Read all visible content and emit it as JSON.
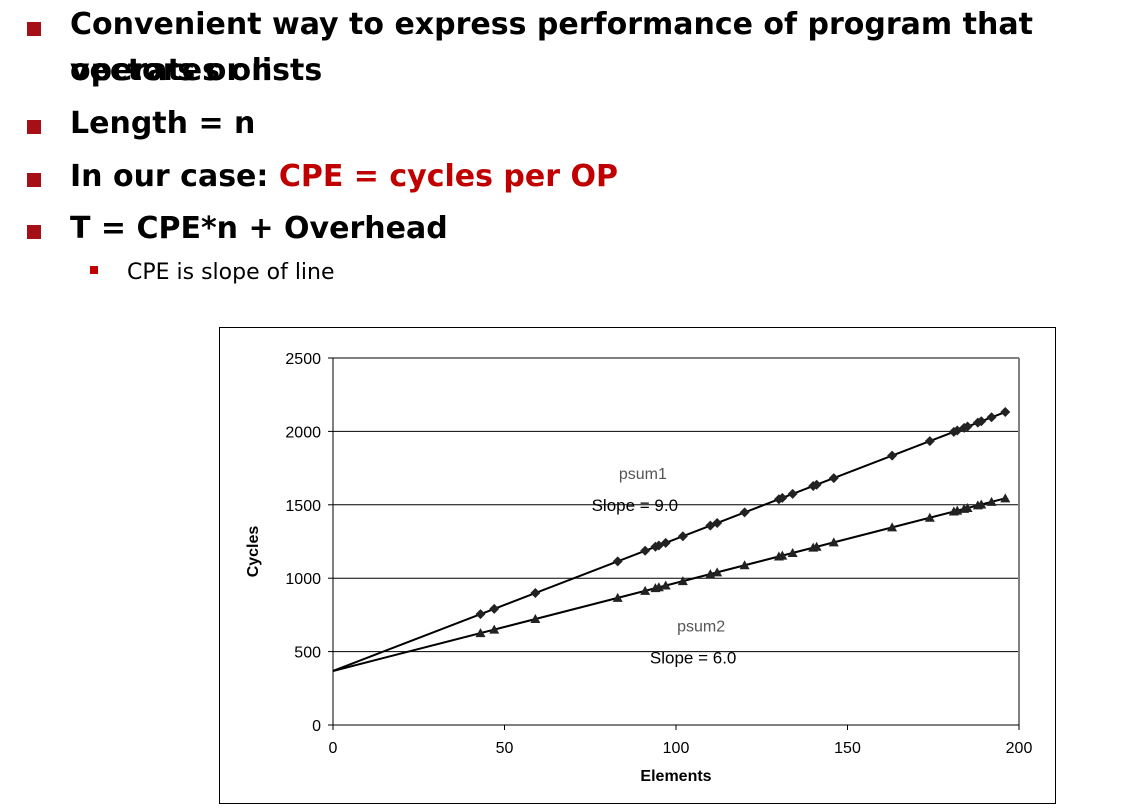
{
  "bullets": [
    {
      "line1": "Convenient way to express performance of program that operates on",
      "line2": "vectors or lists"
    },
    {
      "text": "Length = n"
    },
    {
      "prefix": "In our case: ",
      "highlight": "CPE = cycles per OP"
    },
    {
      "text": "T = CPE*n + Overhead"
    }
  ],
  "sub_bullet": "CPE is slope of line",
  "colors": {
    "bullet_square": "#a50f15",
    "highlight_red": "#c00000"
  },
  "chart_data": {
    "type": "scatter",
    "xlabel": "Elements",
    "ylabel": "Cycles",
    "xlim": [
      0,
      200
    ],
    "ylim": [
      0,
      2500
    ],
    "xticks": [
      0,
      50,
      100,
      150,
      200
    ],
    "yticks": [
      0,
      500,
      1000,
      1500,
      2000,
      2500
    ],
    "grid": "horizontal",
    "series": [
      {
        "name": "psum1",
        "marker": "diamond",
        "fit": {
          "slope": 9.0,
          "intercept": 368,
          "x_range": [
            0,
            196
          ]
        },
        "x": [
          43,
          47,
          59,
          83,
          91,
          94,
          95,
          97,
          102,
          110,
          112,
          120,
          130,
          131,
          134,
          140,
          141,
          146,
          163,
          174,
          181,
          182,
          184,
          185,
          188,
          189,
          192,
          196
        ],
        "y": [
          755,
          791,
          899,
          1115,
          1187,
          1214,
          1223,
          1241,
          1286,
          1358,
          1376,
          1448,
          1538,
          1547,
          1574,
          1628,
          1637,
          1682,
          1835,
          1934,
          1997,
          2006,
          2024,
          2033,
          2060,
          2069,
          2096,
          2132
        ]
      },
      {
        "name": "psum2",
        "marker": "triangle",
        "fit": {
          "slope": 6.0,
          "intercept": 368,
          "x_range": [
            0,
            196
          ]
        },
        "x": [
          43,
          47,
          59,
          83,
          91,
          94,
          95,
          97,
          102,
          110,
          112,
          120,
          130,
          131,
          134,
          140,
          141,
          146,
          163,
          174,
          181,
          182,
          184,
          185,
          188,
          189,
          192,
          196
        ],
        "y": [
          626,
          650,
          722,
          866,
          914,
          932,
          938,
          950,
          980,
          1028,
          1040,
          1088,
          1148,
          1154,
          1172,
          1208,
          1214,
          1244,
          1346,
          1412,
          1454,
          1460,
          1472,
          1478,
          1496,
          1502,
          1520,
          1544
        ]
      }
    ],
    "annotations": [
      {
        "series": "psum1",
        "name_label": "psum1",
        "slope_label": "Slope = 9.0",
        "at": [
          88,
          1500
        ]
      },
      {
        "series": "psum2",
        "name_label": "psum2",
        "slope_label": "Slope = 6.0",
        "at": [
          105,
          460
        ]
      }
    ]
  }
}
